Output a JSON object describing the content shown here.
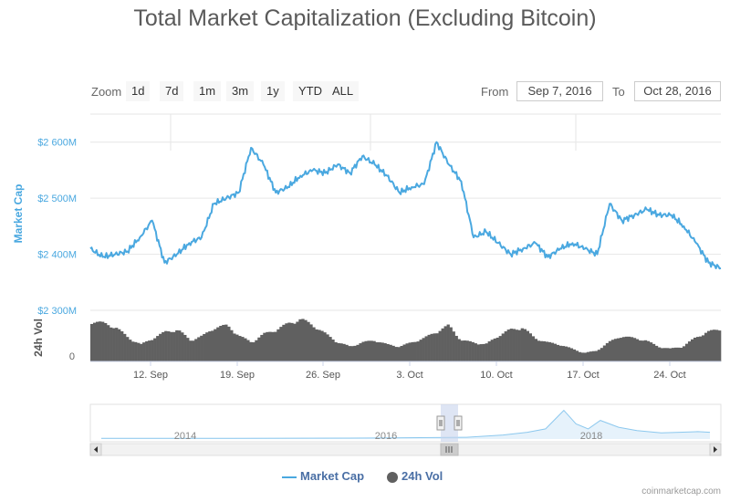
{
  "title": "Total Market Capitalization (Excluding Bitcoin)",
  "rangeSelector": {
    "zoom_label": "Zoom",
    "buttons": [
      "1d",
      "7d",
      "1m",
      "3m",
      "1y",
      "YTD",
      "ALL"
    ],
    "from_label": "From",
    "from_value": "Sep 7, 2016",
    "to_label": "To",
    "to_value": "Oct 28, 2016"
  },
  "watermark": "coinmarketcap.com",
  "colors": {
    "market_cap": "#4aa8e0",
    "volume": "#606060",
    "navigator_fill": "#e6f2fb",
    "navigator_line": "#8cc8ee",
    "mask": "#c8d4ec",
    "grid": "#e6e6e6"
  },
  "chart_data": {
    "type": "line",
    "title": "Total Market Capitalization (Excluding Bitcoin)",
    "x_range": [
      "Sep 7, 2016",
      "Oct 28, 2016"
    ],
    "x_ticks": [
      "12. Sep",
      "19. Sep",
      "26. Sep",
      "3. Oct",
      "10. Oct",
      "17. Oct",
      "24. Oct"
    ],
    "y_axis": {
      "label": "Market Cap",
      "ticks": [
        "$2 300M",
        "$2 400M",
        "$2 500M",
        "$2 600M"
      ],
      "tick_values": [
        2300,
        2400,
        2500,
        2600
      ],
      "range": [
        2300,
        2650
      ]
    },
    "volume_axis": {
      "label": "24h Vol",
      "ticks": [
        "0"
      ]
    },
    "series": [
      {
        "name": "Market Cap",
        "type": "line",
        "x": [
          "Sep 7",
          "Sep 8",
          "Sep 9",
          "Sep 10",
          "Sep 11",
          "Sep 12",
          "Sep 13",
          "Sep 14",
          "Sep 15",
          "Sep 16",
          "Sep 17",
          "Sep 18",
          "Sep 19",
          "Sep 20",
          "Sep 21",
          "Sep 22",
          "Sep 23",
          "Sep 24",
          "Sep 25",
          "Sep 26",
          "Sep 27",
          "Sep 28",
          "Sep 29",
          "Sep 30",
          "Oct 1",
          "Oct 2",
          "Oct 3",
          "Oct 4",
          "Oct 5",
          "Oct 6",
          "Oct 7",
          "Oct 8",
          "Oct 9",
          "Oct 10",
          "Oct 11",
          "Oct 12",
          "Oct 13",
          "Oct 14",
          "Oct 15",
          "Oct 16",
          "Oct 17",
          "Oct 18",
          "Oct 19",
          "Oct 20",
          "Oct 21",
          "Oct 22",
          "Oct 23",
          "Oct 24",
          "Oct 25",
          "Oct 26",
          "Oct 27",
          "Oct 28"
        ],
        "values": [
          2410,
          2395,
          2400,
          2405,
          2430,
          2460,
          2385,
          2400,
          2420,
          2430,
          2490,
          2500,
          2510,
          2590,
          2560,
          2510,
          2520,
          2540,
          2550,
          2545,
          2560,
          2545,
          2575,
          2560,
          2540,
          2510,
          2520,
          2525,
          2600,
          2560,
          2530,
          2430,
          2440,
          2420,
          2400,
          2410,
          2420,
          2395,
          2410,
          2420,
          2410,
          2400,
          2490,
          2460,
          2470,
          2480,
          2470,
          2470,
          2450,
          2420,
          2385,
          2375
        ]
      },
      {
        "name": "24h Vol",
        "type": "area",
        "x": [
          "Sep 7",
          "Sep 8",
          "Sep 9",
          "Sep 10",
          "Sep 11",
          "Sep 12",
          "Sep 13",
          "Sep 14",
          "Sep 15",
          "Sep 16",
          "Sep 17",
          "Sep 18",
          "Sep 19",
          "Sep 20",
          "Sep 21",
          "Sep 22",
          "Sep 23",
          "Sep 24",
          "Sep 25",
          "Sep 26",
          "Sep 27",
          "Sep 28",
          "Sep 29",
          "Sep 30",
          "Oct 1",
          "Oct 2",
          "Oct 3",
          "Oct 4",
          "Oct 5",
          "Oct 6",
          "Oct 7",
          "Oct 8",
          "Oct 9",
          "Oct 10",
          "Oct 11",
          "Oct 12",
          "Oct 13",
          "Oct 14",
          "Oct 15",
          "Oct 16",
          "Oct 17",
          "Oct 18",
          "Oct 19",
          "Oct 20",
          "Oct 21",
          "Oct 22",
          "Oct 23",
          "Oct 24",
          "Oct 25",
          "Oct 26",
          "Oct 27",
          "Oct 28"
        ],
        "values": [
          0.95,
          0.9,
          0.8,
          0.55,
          0.4,
          0.55,
          0.7,
          0.75,
          0.5,
          0.6,
          0.8,
          0.85,
          0.6,
          0.45,
          0.65,
          0.75,
          0.9,
          1.0,
          0.85,
          0.65,
          0.45,
          0.35,
          0.45,
          0.5,
          0.4,
          0.35,
          0.45,
          0.55,
          0.7,
          0.85,
          0.5,
          0.45,
          0.4,
          0.6,
          0.75,
          0.8,
          0.55,
          0.45,
          0.4,
          0.3,
          0.2,
          0.25,
          0.45,
          0.6,
          0.55,
          0.5,
          0.35,
          0.3,
          0.35,
          0.55,
          0.7,
          0.75
        ]
      }
    ],
    "navigator": {
      "x_ticks": [
        "2014",
        "2016",
        "2018"
      ]
    },
    "legend": {
      "position": "bottom",
      "items": [
        "Market Cap",
        "24h Vol"
      ]
    }
  }
}
